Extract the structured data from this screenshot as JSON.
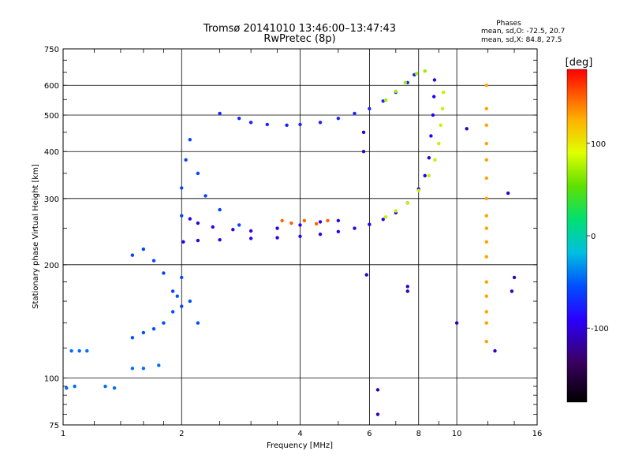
{
  "chart_data": {
    "type": "scatter",
    "title": "Tromsø 20141010 13:46:00–13:47:43",
    "subtitle": "RwPretec (8p)",
    "xlabel": "Frequency [MHz]",
    "ylabel": "Stationary phase Virtual Height [km]",
    "x_scale": "log",
    "y_scale": "log",
    "xlim": [
      1,
      16
    ],
    "ylim": [
      75,
      750
    ],
    "x_ticks": [
      1,
      2,
      4,
      6,
      8,
      10,
      16
    ],
    "x_tick_labels": [
      "1",
      "2",
      "4",
      "6",
      "8",
      "10",
      "16"
    ],
    "y_ticks": [
      75,
      100,
      200,
      300,
      400,
      500,
      600,
      750
    ],
    "y_tick_labels": [
      "75",
      "100",
      "200",
      "300",
      "400",
      "500",
      "600",
      "750"
    ],
    "grid": true,
    "phase_stats": {
      "heading": "Phases",
      "line_o": "mean, sd,O: -72.5, 20.7",
      "line_x": "mean, sd,X:  84.8, 27.5"
    },
    "colorbar": {
      "label": "[deg]",
      "range": [
        -180,
        180
      ],
      "ticks": [
        100,
        0,
        -100
      ],
      "tick_labels": [
        "100",
        "0",
        "-100"
      ]
    },
    "series": [
      {
        "points": [
          [
            2.02,
            230
          ],
          [
            2.2,
            232
          ],
          [
            2.5,
            233
          ],
          [
            3,
            235
          ],
          [
            3.5,
            236
          ],
          [
            4,
            238
          ],
          [
            4.5,
            241
          ],
          [
            5,
            245
          ],
          [
            5.5,
            250
          ],
          [
            6,
            256
          ],
          [
            6.5,
            264
          ],
          [
            7,
            275
          ],
          [
            7.5,
            292
          ],
          [
            8,
            318
          ],
          [
            8.3,
            345
          ],
          [
            8.5,
            385
          ],
          [
            8.6,
            440
          ],
          [
            8.7,
            500
          ],
          [
            8.75,
            560
          ],
          [
            8.78,
            620
          ]
        ],
        "phase": -95
      },
      {
        "points": [
          [
            2.1,
            265
          ],
          [
            2.2,
            258
          ],
          [
            2.4,
            252
          ],
          [
            2.7,
            248
          ],
          [
            3,
            246
          ],
          [
            3.5,
            250
          ],
          [
            4,
            255
          ],
          [
            4.5,
            260
          ],
          [
            5,
            262
          ]
        ],
        "phase": -95
      },
      {
        "points": [
          [
            3.6,
            262
          ],
          [
            3.8,
            258
          ],
          [
            4.1,
            262
          ],
          [
            4.4,
            257
          ],
          [
            4.7,
            262
          ]
        ],
        "phase": 150
      },
      {
        "points": [
          [
            2.5,
            505
          ],
          [
            2.8,
            490
          ],
          [
            3,
            478
          ],
          [
            3.3,
            472
          ],
          [
            3.7,
            470
          ],
          [
            4,
            472
          ],
          [
            4.5,
            478
          ],
          [
            5,
            490
          ],
          [
            5.5,
            505
          ],
          [
            6,
            520
          ],
          [
            6.5,
            545
          ],
          [
            7,
            575
          ],
          [
            7.5,
            610
          ],
          [
            7.8,
            640
          ]
        ],
        "phase": -75
      },
      {
        "points": [
          [
            6.6,
            548
          ],
          [
            7,
            578
          ],
          [
            7.4,
            610
          ],
          [
            7.9,
            645
          ],
          [
            8.3,
            655
          ]
        ],
        "phase": 70
      },
      {
        "points": [
          [
            6.6,
            268
          ],
          [
            7,
            278
          ],
          [
            7.5,
            292
          ],
          [
            8,
            315
          ],
          [
            8.5,
            345
          ],
          [
            8.8,
            380
          ],
          [
            9,
            420
          ],
          [
            9.1,
            470
          ],
          [
            9.2,
            520
          ],
          [
            9.25,
            575
          ]
        ],
        "phase": 80
      },
      {
        "points": [
          [
            1.5,
            212
          ],
          [
            1.6,
            220
          ],
          [
            1.7,
            205
          ],
          [
            1.8,
            190
          ],
          [
            1.9,
            170
          ],
          [
            2,
            155
          ],
          [
            2,
            270
          ],
          [
            2,
            320
          ],
          [
            2.05,
            380
          ],
          [
            2.1,
            430
          ],
          [
            2.2,
            350
          ],
          [
            2.3,
            305
          ],
          [
            2.5,
            280
          ],
          [
            2.8,
            255
          ]
        ],
        "phase": -60
      },
      {
        "points": [
          [
            1.5,
            128
          ],
          [
            1.6,
            132
          ],
          [
            1.7,
            135
          ],
          [
            1.8,
            140
          ],
          [
            1.9,
            150
          ],
          [
            1.95,
            165
          ],
          [
            2,
            185
          ],
          [
            2.1,
            160
          ],
          [
            2.2,
            140
          ]
        ],
        "phase": -55
      },
      {
        "points": [
          [
            1.05,
            118
          ],
          [
            1.1,
            118
          ],
          [
            1.15,
            118
          ],
          [
            1.02,
            94
          ],
          [
            1.07,
            95
          ],
          [
            1.28,
            95
          ],
          [
            1.35,
            94
          ],
          [
            1.5,
            106
          ],
          [
            1.6,
            106
          ],
          [
            1.75,
            108
          ]
        ],
        "phase": -45
      },
      {
        "points": [
          [
            11.9,
            600
          ],
          [
            11.9,
            520
          ],
          [
            11.9,
            470
          ],
          [
            11.9,
            420
          ],
          [
            11.9,
            380
          ],
          [
            11.9,
            340
          ],
          [
            11.9,
            300
          ],
          [
            11.9,
            270
          ],
          [
            11.9,
            250
          ],
          [
            11.9,
            230
          ],
          [
            11.9,
            210
          ],
          [
            11.9,
            180
          ],
          [
            11.9,
            165
          ],
          [
            11.9,
            150
          ],
          [
            11.9,
            140
          ],
          [
            11.9,
            125
          ]
        ],
        "phase": 130
      },
      {
        "points": [
          [
            6.3,
            93
          ],
          [
            6.3,
            80
          ],
          [
            7.5,
            175
          ],
          [
            7.5,
            170
          ],
          [
            14,
            185
          ],
          [
            13.8,
            170
          ],
          [
            12.5,
            118
          ],
          [
            5.9,
            188
          ],
          [
            5.8,
            450
          ],
          [
            5.8,
            400
          ],
          [
            10,
            140
          ],
          [
            10.6,
            460
          ],
          [
            13.5,
            310
          ]
        ],
        "phase": -110
      }
    ]
  }
}
